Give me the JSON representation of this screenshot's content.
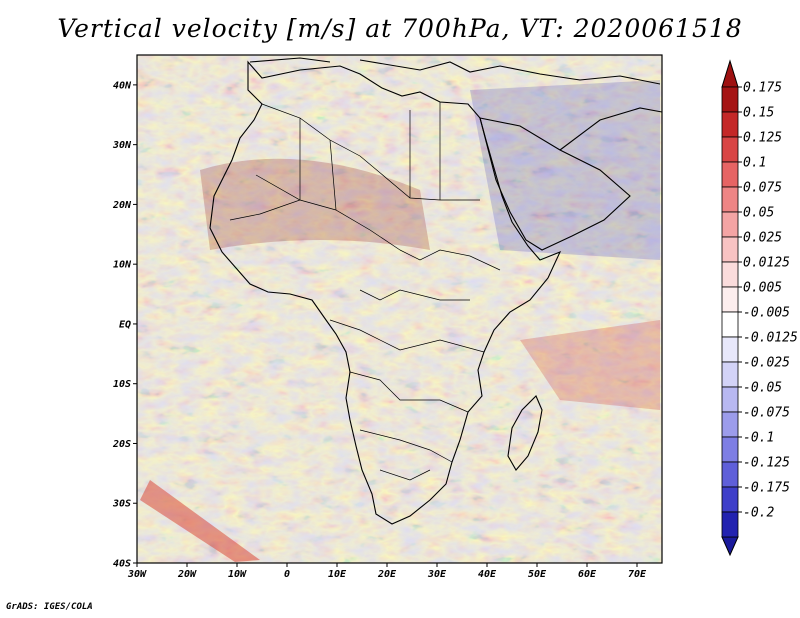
{
  "title": "Vertical velocity [m/s] at 700hPa, VT: 2020061518",
  "footer": "GrADS: IGES/COLA",
  "map": {
    "region": "Africa",
    "lon_range": [
      -30,
      75
    ],
    "lat_range": [
      -40,
      45
    ],
    "lon_ticks": [
      {
        "value": -30,
        "label": "30W"
      },
      {
        "value": -20,
        "label": "20W"
      },
      {
        "value": -10,
        "label": "10W"
      },
      {
        "value": 0,
        "label": "0"
      },
      {
        "value": 10,
        "label": "10E"
      },
      {
        "value": 20,
        "label": "20E"
      },
      {
        "value": 30,
        "label": "30E"
      },
      {
        "value": 40,
        "label": "40E"
      },
      {
        "value": 50,
        "label": "50E"
      },
      {
        "value": 60,
        "label": "60E"
      },
      {
        "value": 70,
        "label": "70E"
      }
    ],
    "lat_ticks": [
      {
        "value": 40,
        "label": "40N"
      },
      {
        "value": 30,
        "label": "30N"
      },
      {
        "value": 20,
        "label": "20N"
      },
      {
        "value": 10,
        "label": "10N"
      },
      {
        "value": 0,
        "label": "EQ"
      },
      {
        "value": -10,
        "label": "10S"
      },
      {
        "value": -20,
        "label": "20S"
      },
      {
        "value": -30,
        "label": "30S"
      },
      {
        "value": -40,
        "label": "40S"
      }
    ]
  },
  "colorbar": {
    "entries": [
      {
        "label": "0.175",
        "color": "#a51414"
      },
      {
        "label": "0.15",
        "color": "#c42828"
      },
      {
        "label": "0.125",
        "color": "#d84545"
      },
      {
        "label": "0.1",
        "color": "#e66464"
      },
      {
        "label": "0.075",
        "color": "#ee8585"
      },
      {
        "label": "0.05",
        "color": "#f4a4a4"
      },
      {
        "label": "0.025",
        "color": "#f8c3c3"
      },
      {
        "label": "0.0125",
        "color": "#fbdcdc"
      },
      {
        "label": "0.005",
        "color": "#fdeeee"
      },
      {
        "label": "-0.005",
        "color": "#ffffff"
      },
      {
        "label": "-0.0125",
        "color": "#e8e8fb"
      },
      {
        "label": "-0.025",
        "color": "#d3d3f7"
      },
      {
        "label": "-0.05",
        "color": "#b8b8f1"
      },
      {
        "label": "-0.075",
        "color": "#9c9ceb"
      },
      {
        "label": "-0.1",
        "color": "#7e7ee4"
      },
      {
        "label": "-0.125",
        "color": "#5f5fd9"
      },
      {
        "label": "-0.175",
        "color": "#3f3fc9"
      },
      {
        "label": "-0.2",
        "color": "#2222b0"
      }
    ],
    "top_color": "#9e1111",
    "bottom_color": "#1a1a9c"
  }
}
